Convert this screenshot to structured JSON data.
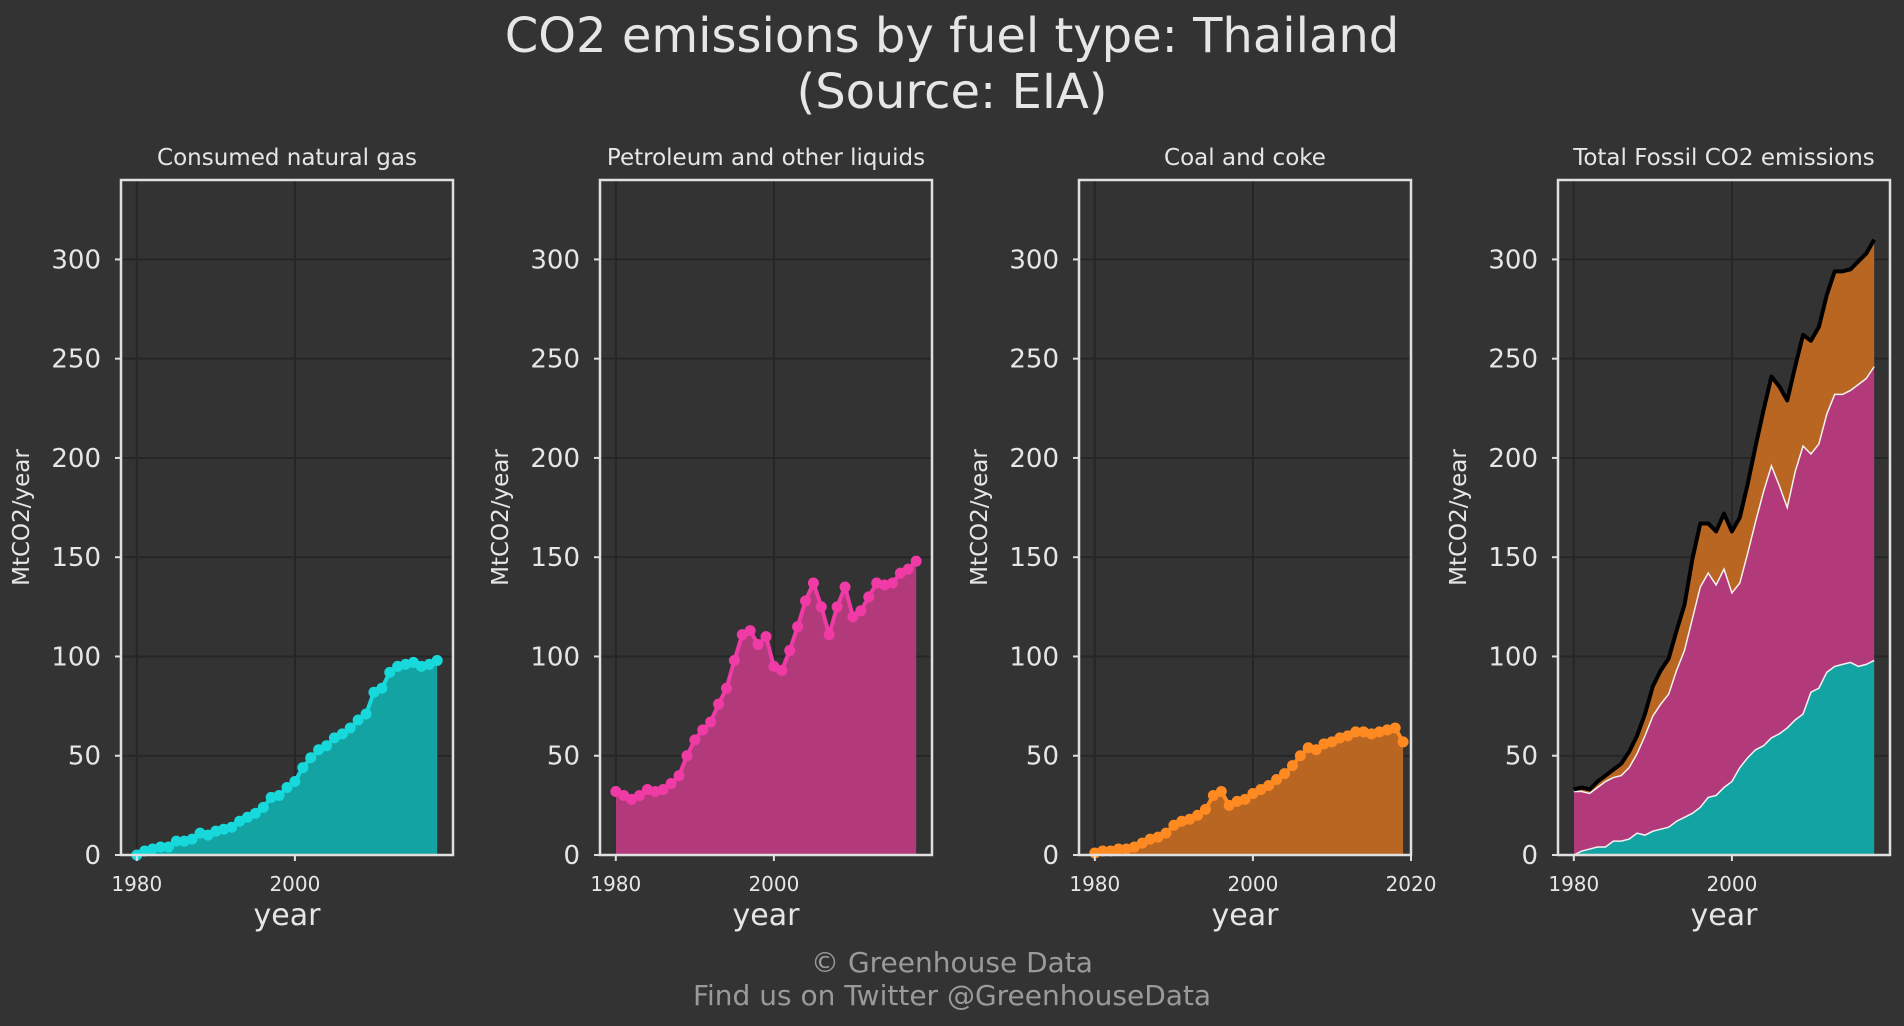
{
  "title_line1": "CO2 emissions by fuel type: Thailand",
  "title_line2": "(Source: EIA)",
  "footer_line1": "© Greenhouse Data",
  "footer_line2": "Find us on Twitter @GreenhouseData",
  "colors": {
    "background": "#333333",
    "gas": "#17d9dc",
    "gas_fill": "#13a3a2",
    "petroleum": "#f03ba6",
    "petroleum_fill": "#b23a7b",
    "coal": "#ff8a22",
    "coal_fill": "#b86622",
    "total_line": "#000000",
    "text": "#e6e6e6",
    "footer_text": "#9a9a9a",
    "grid": "#262626",
    "frame": "#e0e0e0"
  },
  "chart_data": [
    {
      "type": "area",
      "title": "Consumed natural gas",
      "xlabel": "year",
      "ylabel": "MtCO2/year",
      "xticks": [
        1980,
        2000
      ],
      "yticks": [
        0,
        50,
        100,
        150,
        200,
        250,
        300
      ],
      "xlim": [
        1978,
        2020
      ],
      "ylim": [
        0,
        340
      ],
      "grid": true,
      "series": [
        {
          "color_key": "gas",
          "markers": true,
          "x": [
            1980,
            1981,
            1982,
            1983,
            1984,
            1985,
            1986,
            1987,
            1988,
            1989,
            1990,
            1991,
            1992,
            1993,
            1994,
            1995,
            1996,
            1997,
            1998,
            1999,
            2000,
            2001,
            2002,
            2003,
            2004,
            2005,
            2006,
            2007,
            2008,
            2009,
            2010,
            2011,
            2012,
            2013,
            2014,
            2015,
            2016,
            2017,
            2018
          ],
          "values": [
            0,
            2,
            3,
            4,
            4,
            7,
            7,
            8,
            11,
            10,
            12,
            13,
            14,
            17,
            19,
            21,
            24,
            29,
            30,
            34,
            37,
            44,
            49,
            53,
            55,
            59,
            61,
            64,
            68,
            71,
            82,
            84,
            92,
            95,
            96,
            97,
            95,
            96,
            98
          ]
        }
      ]
    },
    {
      "type": "area",
      "title": "Petroleum and other liquids",
      "xlabel": "year",
      "ylabel": "MtCO2/year",
      "xticks": [
        1980,
        2000
      ],
      "yticks": [
        0,
        50,
        100,
        150,
        200,
        250,
        300
      ],
      "xlim": [
        1978,
        2020
      ],
      "ylim": [
        0,
        340
      ],
      "grid": true,
      "series": [
        {
          "color_key": "petroleum",
          "markers": true,
          "x": [
            1980,
            1981,
            1982,
            1983,
            1984,
            1985,
            1986,
            1987,
            1988,
            1989,
            1990,
            1991,
            1992,
            1993,
            1994,
            1995,
            1996,
            1997,
            1998,
            1999,
            2000,
            2001,
            2002,
            2003,
            2004,
            2005,
            2006,
            2007,
            2008,
            2009,
            2010,
            2011,
            2012,
            2013,
            2014,
            2015,
            2016,
            2017,
            2018
          ],
          "values": [
            32,
            30,
            28,
            30,
            33,
            32,
            33,
            36,
            40,
            50,
            58,
            63,
            67,
            76,
            84,
            98,
            111,
            113,
            106,
            110,
            95,
            93,
            103,
            115,
            128,
            137,
            125,
            111,
            125,
            135,
            120,
            123,
            130,
            137,
            136,
            137,
            142,
            144,
            148
          ]
        }
      ]
    },
    {
      "type": "area",
      "title": "Coal and coke",
      "xlabel": "year",
      "ylabel": "MtCO2/year",
      "xticks": [
        1980,
        2000,
        2020
      ],
      "yticks": [
        0,
        50,
        100,
        150,
        200,
        250,
        300
      ],
      "xlim": [
        1978,
        2020
      ],
      "ylim": [
        0,
        340
      ],
      "grid": true,
      "series": [
        {
          "color_key": "coal",
          "markers": true,
          "x": [
            1980,
            1981,
            1982,
            1983,
            1984,
            1985,
            1986,
            1987,
            1988,
            1989,
            1990,
            1991,
            1992,
            1993,
            1994,
            1995,
            1996,
            1997,
            1998,
            1999,
            2000,
            2001,
            2002,
            2003,
            2004,
            2005,
            2006,
            2007,
            2008,
            2009,
            2010,
            2011,
            2012,
            2013,
            2014,
            2015,
            2016,
            2017,
            2018,
            2019
          ],
          "values": [
            1,
            2,
            2,
            3,
            3,
            4,
            6,
            8,
            9,
            11,
            15,
            17,
            18,
            20,
            23,
            30,
            32,
            25,
            27,
            28,
            31,
            33,
            35,
            38,
            41,
            45,
            50,
            54,
            53,
            56,
            57,
            59,
            60,
            62,
            62,
            61,
            62,
            63,
            64,
            57
          ]
        }
      ]
    },
    {
      "type": "area",
      "stacked": true,
      "title": "Total Fossil CO2 emissions",
      "xlabel": "year",
      "ylabel": "MtCO2/year",
      "xticks": [
        1980,
        2000
      ],
      "yticks": [
        0,
        50,
        100,
        150,
        200,
        250,
        300
      ],
      "xlim": [
        1978,
        2020
      ],
      "ylim": [
        0,
        340
      ],
      "grid": true,
      "x": [
        1980,
        1981,
        1982,
        1983,
        1984,
        1985,
        1986,
        1987,
        1988,
        1989,
        1990,
        1991,
        1992,
        1993,
        1994,
        1995,
        1996,
        1997,
        1998,
        1999,
        2000,
        2001,
        2002,
        2003,
        2004,
        2005,
        2006,
        2007,
        2008,
        2009,
        2010,
        2011,
        2012,
        2013,
        2014,
        2015,
        2016,
        2017,
        2018
      ],
      "series": [
        {
          "color_key": "gas",
          "values": [
            0,
            2,
            3,
            4,
            4,
            7,
            7,
            8,
            11,
            10,
            12,
            13,
            14,
            17,
            19,
            21,
            24,
            29,
            30,
            34,
            37,
            44,
            49,
            53,
            55,
            59,
            61,
            64,
            68,
            71,
            82,
            84,
            92,
            95,
            96,
            97,
            95,
            96,
            98
          ]
        },
        {
          "color_key": "petroleum",
          "values": [
            32,
            30,
            28,
            30,
            33,
            32,
            33,
            36,
            40,
            50,
            58,
            63,
            67,
            76,
            84,
            98,
            111,
            113,
            106,
            110,
            95,
            93,
            103,
            115,
            128,
            137,
            125,
            111,
            125,
            135,
            120,
            123,
            130,
            137,
            136,
            137,
            142,
            144,
            148
          ]
        },
        {
          "color_key": "coal",
          "values": [
            1,
            2,
            2,
            3,
            3,
            4,
            6,
            8,
            9,
            11,
            15,
            17,
            18,
            20,
            23,
            30,
            32,
            25,
            27,
            28,
            31,
            33,
            35,
            38,
            41,
            45,
            50,
            54,
            53,
            56,
            57,
            59,
            60,
            62,
            62,
            61,
            62,
            63,
            64
          ]
        }
      ],
      "total_line": true
    }
  ]
}
